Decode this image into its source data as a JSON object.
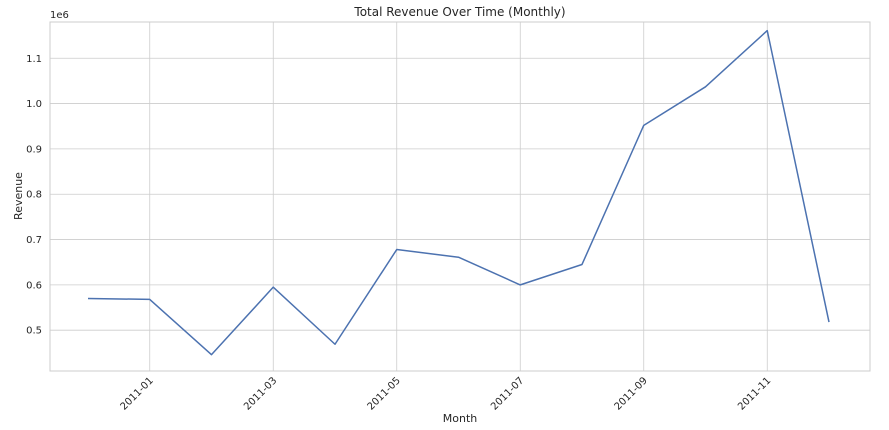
{
  "chart_data": {
    "type": "line",
    "title": "Total Revenue Over Time (Monthly)",
    "xlabel": "Month",
    "ylabel": "Revenue",
    "y_offset_text": "1e6",
    "x_ticks": [
      "2011-01",
      "2011-03",
      "2011-05",
      "2011-07",
      "2011-09",
      "2011-11"
    ],
    "y_ticks": [
      "0.5",
      "0.6",
      "0.7",
      "0.8",
      "0.9",
      "1.0",
      "1.1"
    ],
    "y_tick_values": [
      0.5,
      0.6,
      0.7,
      0.8,
      0.9,
      1.0,
      1.1
    ],
    "ylim": [
      0.41,
      1.18
    ],
    "x": [
      "2010-12",
      "2011-01",
      "2011-02",
      "2011-03",
      "2011-04",
      "2011-05",
      "2011-06",
      "2011-07",
      "2011-08",
      "2011-09",
      "2011-10",
      "2011-11",
      "2011-12"
    ],
    "values": [
      0.57,
      0.568,
      0.446,
      0.595,
      0.469,
      0.678,
      0.661,
      0.6,
      0.645,
      0.952,
      1.037,
      1.161,
      0.518
    ],
    "grid": true,
    "colors": {
      "line": "#4c72b0"
    }
  }
}
